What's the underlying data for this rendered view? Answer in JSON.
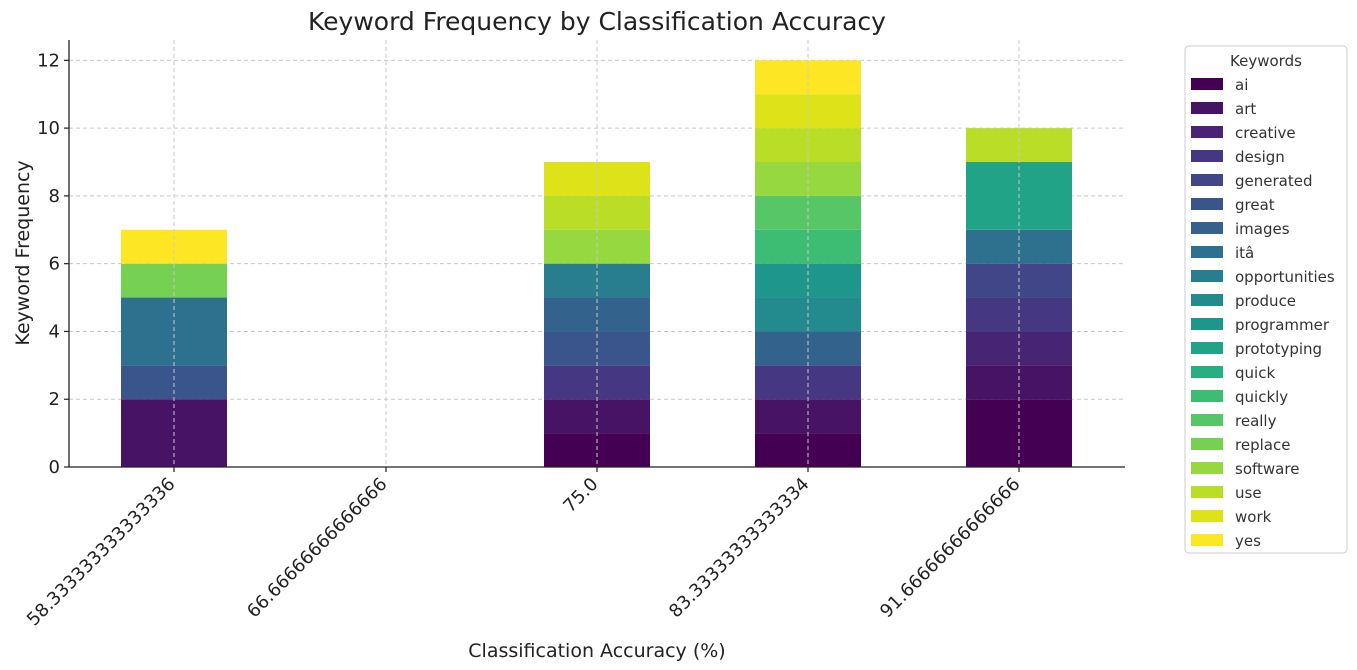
{
  "chart_data": {
    "type": "bar",
    "stacked": true,
    "title": "Keyword Frequency by Classification Accuracy",
    "xlabel": "Classification Accuracy (%)",
    "ylabel": "Keyword Frequency",
    "ylim": [
      0,
      12.6
    ],
    "yticks": [
      0,
      2,
      4,
      6,
      8,
      10,
      12
    ],
    "grid": true,
    "legend_title": "Keywords",
    "legend_position": "outside-right",
    "categories": [
      "58.333333333333336",
      "66.66666666666666",
      "75.0",
      "83.33333333333334",
      "91.66666666666666"
    ],
    "series": [
      {
        "name": "ai",
        "color": "#440154",
        "values": [
          0,
          0,
          1,
          1,
          2
        ]
      },
      {
        "name": "art",
        "color": "#471365",
        "values": [
          2,
          0,
          1,
          1,
          1
        ]
      },
      {
        "name": "creative",
        "color": "#482475",
        "values": [
          0,
          0,
          0,
          0,
          1
        ]
      },
      {
        "name": "design",
        "color": "#453781",
        "values": [
          0,
          0,
          1,
          1,
          1
        ]
      },
      {
        "name": "generated",
        "color": "#404688",
        "values": [
          0,
          0,
          0,
          0,
          1
        ]
      },
      {
        "name": "great",
        "color": "#39558c",
        "values": [
          1,
          0,
          1,
          0,
          0
        ]
      },
      {
        "name": "images",
        "color": "#33638d",
        "values": [
          0,
          0,
          1,
          1,
          0
        ]
      },
      {
        "name": "itâ",
        "color": "#2d718e",
        "values": [
          2,
          0,
          0,
          0,
          1
        ]
      },
      {
        "name": "opportunities",
        "color": "#287d8e",
        "values": [
          0,
          0,
          1,
          0,
          0
        ]
      },
      {
        "name": "produce",
        "color": "#238a8d",
        "values": [
          0,
          0,
          0,
          1,
          0
        ]
      },
      {
        "name": "programmer",
        "color": "#1f968b",
        "values": [
          0,
          0,
          0,
          1,
          0
        ]
      },
      {
        "name": "prototyping",
        "color": "#20a386",
        "values": [
          0,
          0,
          0,
          0,
          2
        ]
      },
      {
        "name": "quick",
        "color": "#29af7f",
        "values": [
          0,
          0,
          0,
          0,
          0
        ]
      },
      {
        "name": "quickly",
        "color": "#3dbc74",
        "values": [
          0,
          0,
          0,
          1,
          0
        ]
      },
      {
        "name": "really",
        "color": "#56c667",
        "values": [
          0,
          0,
          0,
          1,
          0
        ]
      },
      {
        "name": "replace",
        "color": "#75d054",
        "values": [
          1,
          0,
          0,
          0,
          0
        ]
      },
      {
        "name": "software",
        "color": "#95d840",
        "values": [
          0,
          0,
          1,
          1,
          0
        ]
      },
      {
        "name": "use",
        "color": "#bade28",
        "values": [
          0,
          0,
          1,
          1,
          1
        ]
      },
      {
        "name": "work",
        "color": "#dde318",
        "values": [
          0,
          0,
          1,
          1,
          0
        ]
      },
      {
        "name": "yes",
        "color": "#fde725",
        "values": [
          1,
          0,
          0,
          1,
          0
        ]
      }
    ]
  }
}
